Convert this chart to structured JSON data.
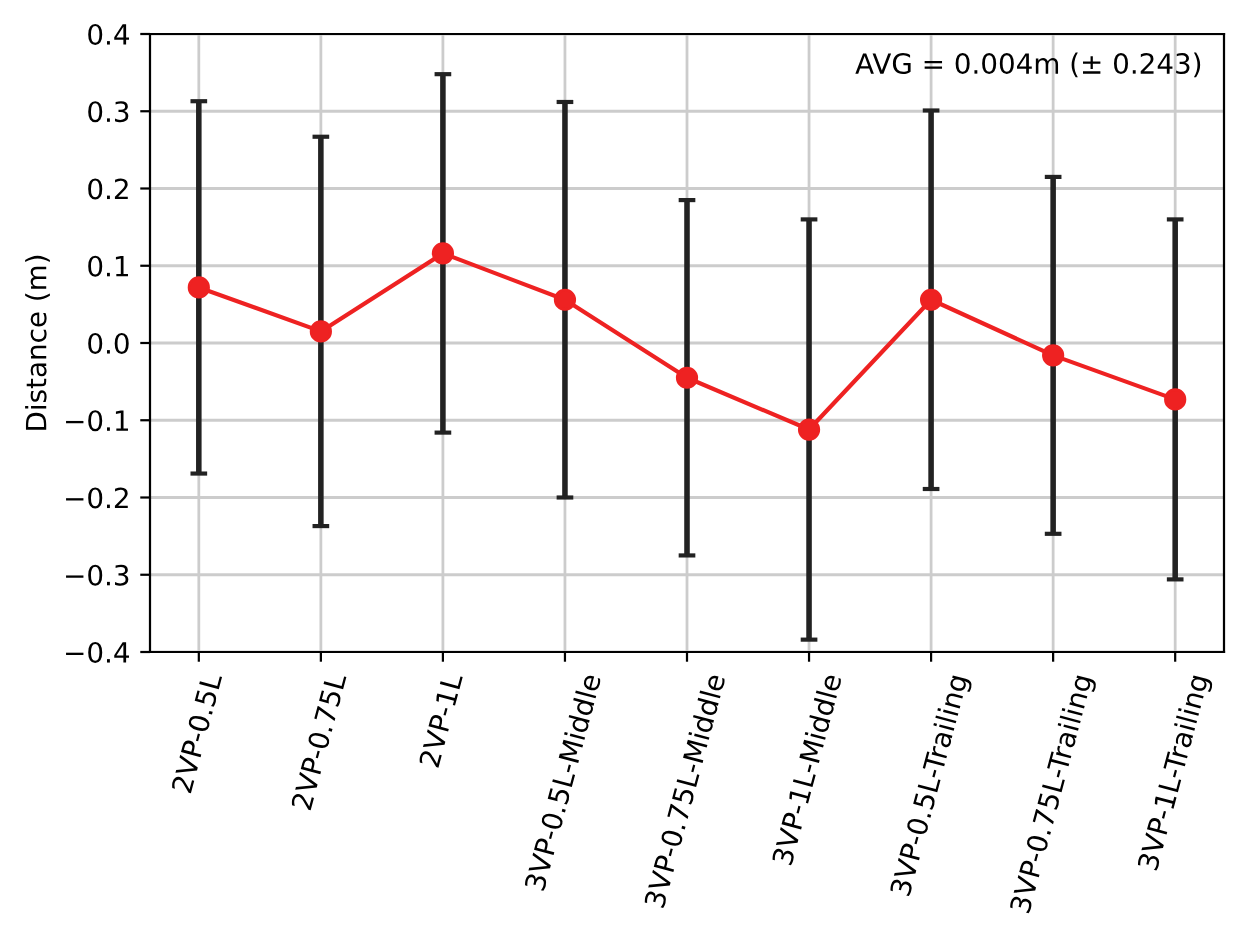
{
  "chart_data": {
    "type": "line",
    "ylabel": "Distance (m)",
    "categories": [
      "2VP-0.5L",
      "2VP-0.75L",
      "2VP-1L",
      "3VP-0.5L-Middle",
      "3VP-0.75L-Middle",
      "3VP-1L-Middle",
      "3VP-0.5L-Trailing",
      "3VP-0.75L-Trailing",
      "3VP-1L-Trailing"
    ],
    "series": [
      {
        "color": "#ee2222",
        "values": [
          0.072,
          0.015,
          0.116,
          0.056,
          -0.045,
          -0.112,
          0.056,
          -0.016,
          -0.073
        ],
        "errors": [
          0.241,
          0.252,
          0.232,
          0.256,
          0.23,
          0.272,
          0.245,
          0.231,
          0.233
        ]
      }
    ],
    "ylim": [
      -0.4,
      0.4
    ],
    "yticks": [
      {
        "value": -0.4,
        "label": "−0.4"
      },
      {
        "value": -0.3,
        "label": "−0.3"
      },
      {
        "value": -0.2,
        "label": "−0.2"
      },
      {
        "value": -0.1,
        "label": "−0.1"
      },
      {
        "value": 0.0,
        "label": "0.0"
      },
      0.1,
      0.2,
      0.3,
      0.4
    ],
    "grid": true,
    "marker": "circle",
    "line_style": "solid",
    "annotations": [
      "AVG = 0.004m (± 0.243)"
    ]
  }
}
